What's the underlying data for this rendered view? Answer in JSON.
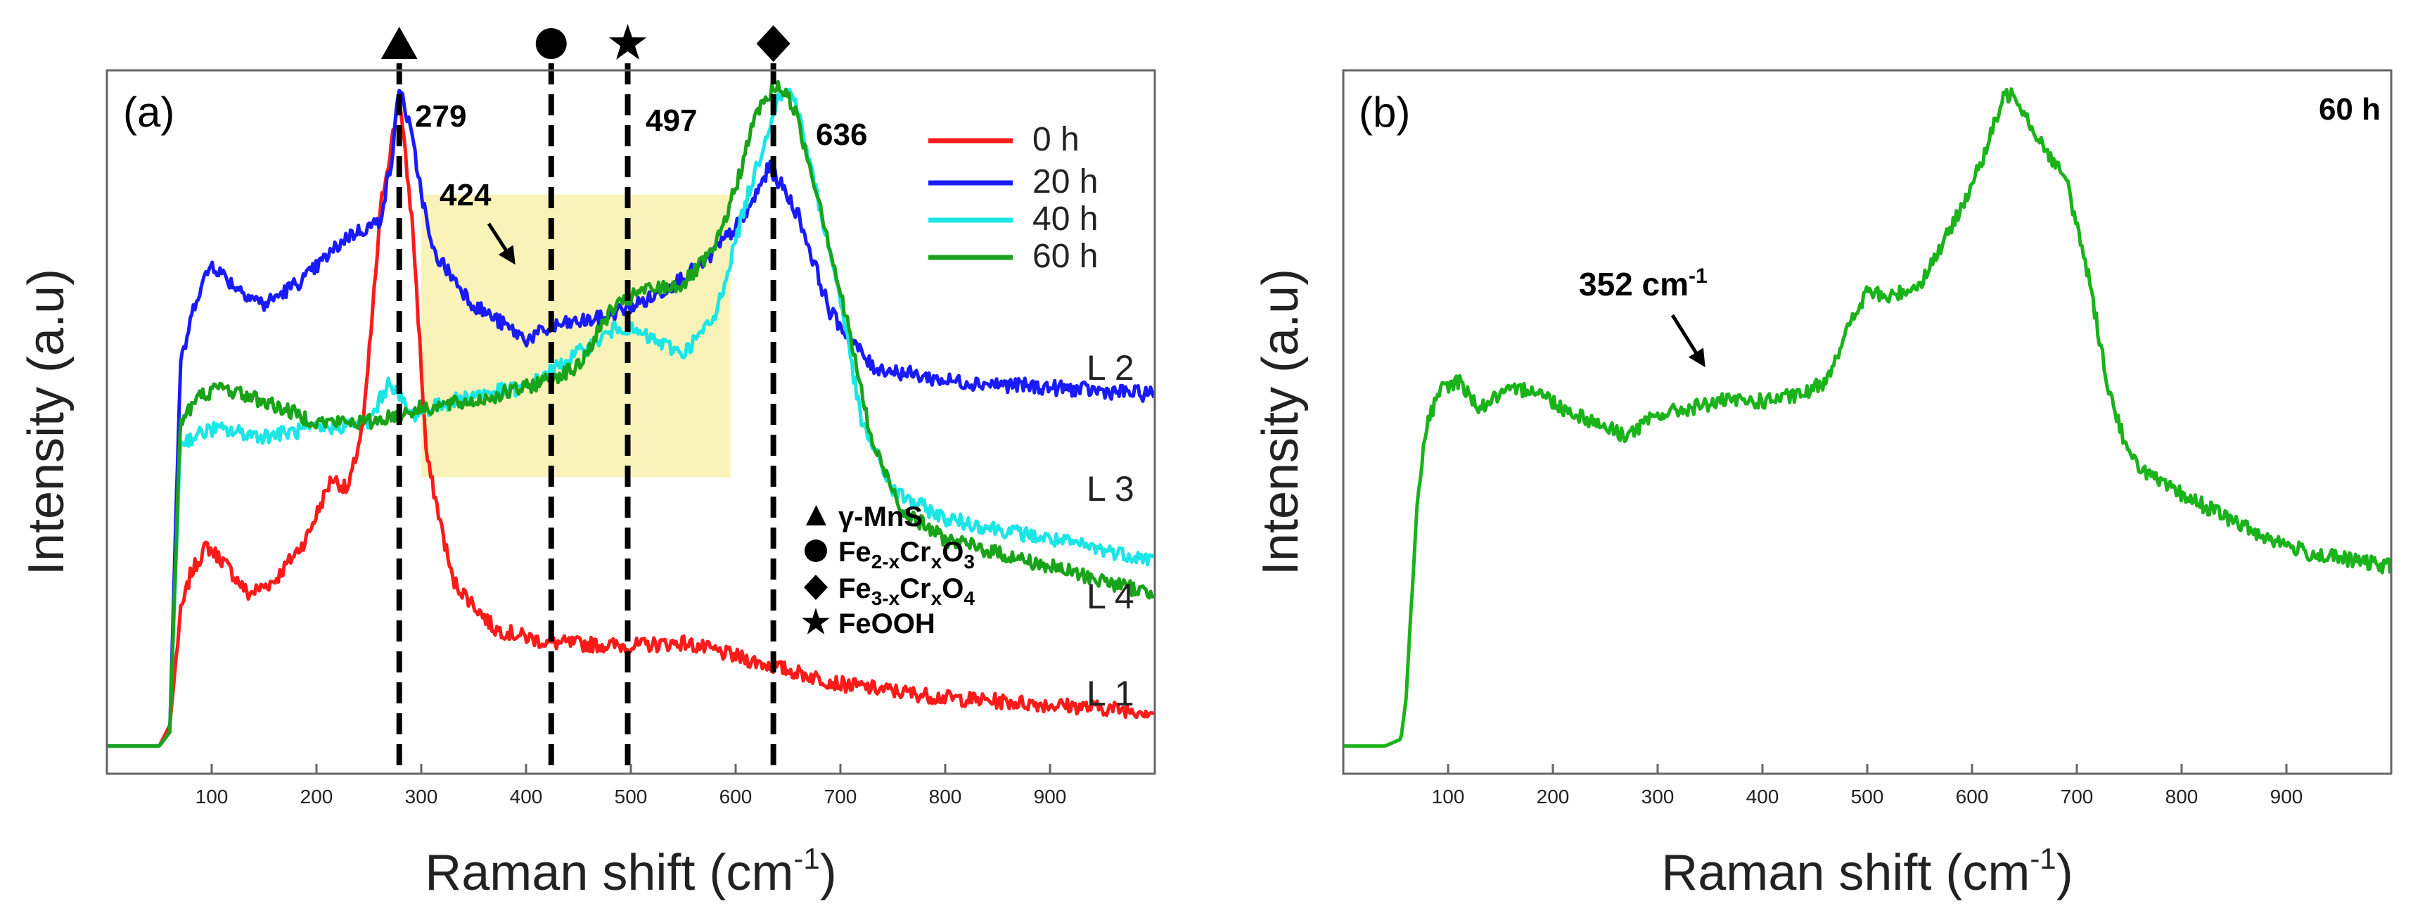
{
  "chart_data": [
    {
      "type": "line",
      "panel_label": "(a)",
      "xlabel": "Raman shift (cm",
      "xlabel_sup": "-1",
      "xlabel_close": ")",
      "ylabel": "Intensity (a.u)",
      "xlim": [
        0,
        1000
      ],
      "ylim": [
        0,
        1
      ],
      "x_ticks": [
        100,
        200,
        300,
        400,
        500,
        600,
        700,
        800,
        900
      ],
      "series": [
        {
          "name": "0 h",
          "color": "#ff1a1a",
          "line_label": "L 1",
          "points": [
            [
              0,
              0.03
            ],
            [
              50,
              0.03
            ],
            [
              60,
              0.06
            ],
            [
              70,
              0.22
            ],
            [
              80,
              0.28
            ],
            [
              95,
              0.32
            ],
            [
              110,
              0.3
            ],
            [
              135,
              0.25
            ],
            [
              160,
              0.27
            ],
            [
              190,
              0.33
            ],
            [
              215,
              0.42
            ],
            [
              230,
              0.4
            ],
            [
              245,
              0.5
            ],
            [
              262,
              0.82
            ],
            [
              279,
              0.97
            ],
            [
              292,
              0.78
            ],
            [
              305,
              0.45
            ],
            [
              330,
              0.27
            ],
            [
              370,
              0.2
            ],
            [
              420,
              0.18
            ],
            [
              500,
              0.175
            ],
            [
              550,
              0.18
            ],
            [
              600,
              0.16
            ],
            [
              700,
              0.12
            ],
            [
              800,
              0.1
            ],
            [
              900,
              0.09
            ],
            [
              1000,
              0.08
            ]
          ]
        },
        {
          "name": "20 h",
          "color": "#1a1aff",
          "line_label": "L 2",
          "points": [
            [
              0,
              0.03
            ],
            [
              50,
              0.03
            ],
            [
              60,
              0.05
            ],
            [
              70,
              0.58
            ],
            [
              85,
              0.68
            ],
            [
              100,
              0.73
            ],
            [
              120,
              0.7
            ],
            [
              150,
              0.67
            ],
            [
              190,
              0.71
            ],
            [
              230,
              0.77
            ],
            [
              260,
              0.79
            ],
            [
              272,
              0.88
            ],
            [
              279,
              0.99
            ],
            [
              290,
              0.92
            ],
            [
              310,
              0.75
            ],
            [
              350,
              0.67
            ],
            [
              400,
              0.62
            ],
            [
              430,
              0.64
            ],
            [
              470,
              0.65
            ],
            [
              520,
              0.68
            ],
            [
              570,
              0.73
            ],
            [
              610,
              0.8
            ],
            [
              632,
              0.87
            ],
            [
              645,
              0.84
            ],
            [
              660,
              0.8
            ],
            [
              690,
              0.66
            ],
            [
              730,
              0.58
            ],
            [
              800,
              0.56
            ],
            [
              900,
              0.55
            ],
            [
              1000,
              0.54
            ]
          ]
        },
        {
          "name": "40 h",
          "color": "#1ae6e6",
          "line_label": "L 3",
          "points": [
            [
              0,
              0.03
            ],
            [
              50,
              0.03
            ],
            [
              60,
              0.05
            ],
            [
              70,
              0.47
            ],
            [
              100,
              0.49
            ],
            [
              150,
              0.48
            ],
            [
              200,
              0.49
            ],
            [
              250,
              0.5
            ],
            [
              270,
              0.56
            ],
            [
              290,
              0.51
            ],
            [
              350,
              0.54
            ],
            [
              400,
              0.55
            ],
            [
              450,
              0.6
            ],
            [
              490,
              0.64
            ],
            [
              520,
              0.62
            ],
            [
              550,
              0.6
            ],
            [
              580,
              0.65
            ],
            [
              610,
              0.82
            ],
            [
              640,
              0.97
            ],
            [
              655,
              0.98
            ],
            [
              670,
              0.88
            ],
            [
              700,
              0.68
            ],
            [
              720,
              0.5
            ],
            [
              750,
              0.4
            ],
            [
              800,
              0.36
            ],
            [
              900,
              0.33
            ],
            [
              1000,
              0.3
            ]
          ]
        },
        {
          "name": "60 h",
          "color": "#1aa31a",
          "line_label": "L 4",
          "points": [
            [
              0,
              0.03
            ],
            [
              50,
              0.03
            ],
            [
              60,
              0.05
            ],
            [
              70,
              0.5
            ],
            [
              90,
              0.54
            ],
            [
              110,
              0.55
            ],
            [
              150,
              0.53
            ],
            [
              200,
              0.5
            ],
            [
              250,
              0.5
            ],
            [
              300,
              0.52
            ],
            [
              350,
              0.53
            ],
            [
              400,
              0.55
            ],
            [
              450,
              0.58
            ],
            [
              480,
              0.66
            ],
            [
              510,
              0.69
            ],
            [
              550,
              0.7
            ],
            [
              580,
              0.75
            ],
            [
              600,
              0.84
            ],
            [
              620,
              0.95
            ],
            [
              640,
              0.99
            ],
            [
              655,
              0.96
            ],
            [
              680,
              0.82
            ],
            [
              710,
              0.62
            ],
            [
              730,
              0.47
            ],
            [
              760,
              0.37
            ],
            [
              800,
              0.33
            ],
            [
              900,
              0.29
            ],
            [
              1000,
              0.25
            ]
          ]
        }
      ],
      "vertical_lines": [
        {
          "x": 279,
          "marker": "triangle",
          "label": "279"
        },
        {
          "x": 424,
          "marker": "circle",
          "label": "424"
        },
        {
          "x": 497,
          "marker": "star",
          "label": "497"
        },
        {
          "x": 636,
          "marker": "diamond",
          "label": "636"
        }
      ],
      "highlight_region": {
        "x": [
          300,
          595
        ],
        "y": [
          0.42,
          0.83
        ],
        "color": "#f9f3b9"
      },
      "annotations": [
        {
          "text": "424",
          "x": 380,
          "y": 0.82,
          "arrow_to": [
            405,
            0.7
          ]
        }
      ],
      "legend_position": "top-right",
      "phase_legend": [
        {
          "marker": "triangle",
          "parts": [
            {
              "t": "γ-MnS"
            }
          ]
        },
        {
          "marker": "circle",
          "parts": [
            {
              "t": "Fe"
            },
            {
              "t": "2-x",
              "sub": true
            },
            {
              "t": "Cr"
            },
            {
              "t": "x",
              "sub": true
            },
            {
              "t": "O"
            },
            {
              "t": "3",
              "sub": true
            }
          ]
        },
        {
          "marker": "diamond",
          "parts": [
            {
              "t": "Fe"
            },
            {
              "t": "3-x",
              "sub": true
            },
            {
              "t": "Cr"
            },
            {
              "t": "x",
              "sub": true
            },
            {
              "t": "O"
            },
            {
              "t": "4",
              "sub": true
            }
          ]
        },
        {
          "marker": "star",
          "parts": [
            {
              "t": "FeOOH"
            }
          ]
        }
      ]
    },
    {
      "type": "line",
      "panel_label": "(b)",
      "xlabel": "Raman shift (cm",
      "xlabel_sup": "-1",
      "xlabel_close": ")",
      "ylabel": "Intensity (a.u)",
      "xlim": [
        0,
        1000
      ],
      "ylim": [
        0,
        1
      ],
      "x_ticks": [
        100,
        200,
        300,
        400,
        500,
        600,
        700,
        800,
        900
      ],
      "corner_label": "60 h",
      "series": [
        {
          "name": "60 h",
          "color": "#1ab31a",
          "points": [
            [
              0,
              0.03
            ],
            [
              40,
              0.03
            ],
            [
              55,
              0.04
            ],
            [
              60,
              0.1
            ],
            [
              70,
              0.38
            ],
            [
              80,
              0.5
            ],
            [
              95,
              0.55
            ],
            [
              110,
              0.56
            ],
            [
              130,
              0.52
            ],
            [
              150,
              0.54
            ],
            [
              180,
              0.55
            ],
            [
              210,
              0.52
            ],
            [
              240,
              0.5
            ],
            [
              270,
              0.48
            ],
            [
              300,
              0.51
            ],
            [
              330,
              0.52
            ],
            [
              360,
              0.53
            ],
            [
              400,
              0.53
            ],
            [
              440,
              0.54
            ],
            [
              460,
              0.56
            ],
            [
              480,
              0.63
            ],
            [
              500,
              0.69
            ],
            [
              520,
              0.68
            ],
            [
              550,
              0.7
            ],
            [
              580,
              0.78
            ],
            [
              610,
              0.88
            ],
            [
              630,
              0.97
            ],
            [
              640,
              0.98
            ],
            [
              660,
              0.92
            ],
            [
              690,
              0.85
            ],
            [
              710,
              0.72
            ],
            [
              730,
              0.55
            ],
            [
              750,
              0.45
            ],
            [
              780,
              0.41
            ],
            [
              820,
              0.38
            ],
            [
              870,
              0.34
            ],
            [
              920,
              0.31
            ],
            [
              960,
              0.3
            ],
            [
              1000,
              0.29
            ]
          ]
        }
      ],
      "annotations": [
        {
          "text": "352 cm",
          "sup": "-1",
          "x": 300,
          "y": 0.74,
          "arrow_to": [
            345,
            0.57
          ]
        }
      ]
    }
  ]
}
